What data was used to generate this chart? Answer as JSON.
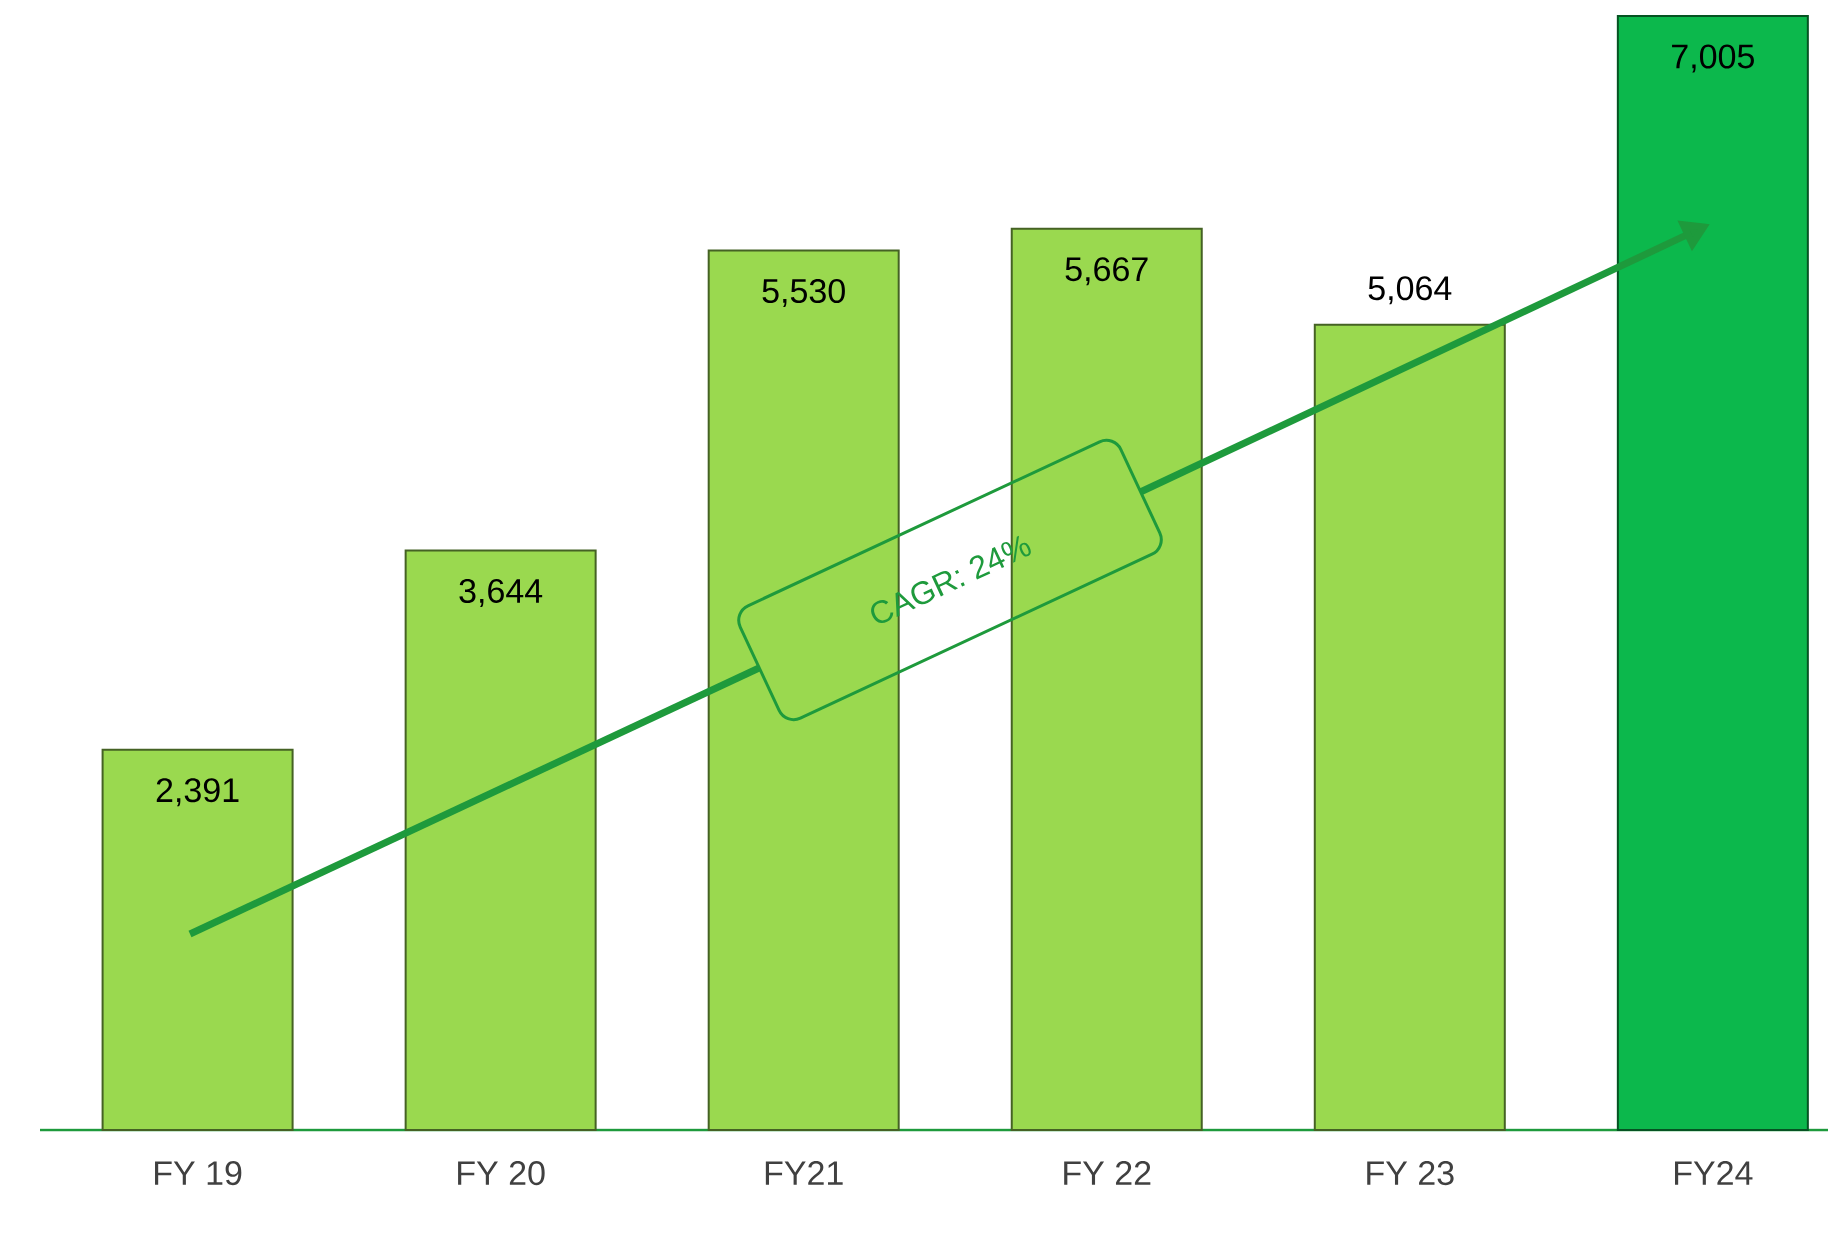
{
  "chart_data": {
    "type": "bar",
    "categories": [
      "FY 19",
      "FY 20",
      "FY21",
      "FY 22",
      "FY 23",
      "FY24"
    ],
    "values": [
      2391,
      3644,
      5530,
      5667,
      5064,
      7005
    ],
    "colors": [
      "#9ad94f",
      "#9ad94f",
      "#9ad94f",
      "#9ad94f",
      "#9ad94f",
      "#0cb84c"
    ],
    "value_labels": [
      "2,391",
      "3,644",
      "5,530",
      "5,667",
      "5,064",
      "7,005"
    ],
    "annotations": [
      "CAGR: 24%"
    ]
  }
}
